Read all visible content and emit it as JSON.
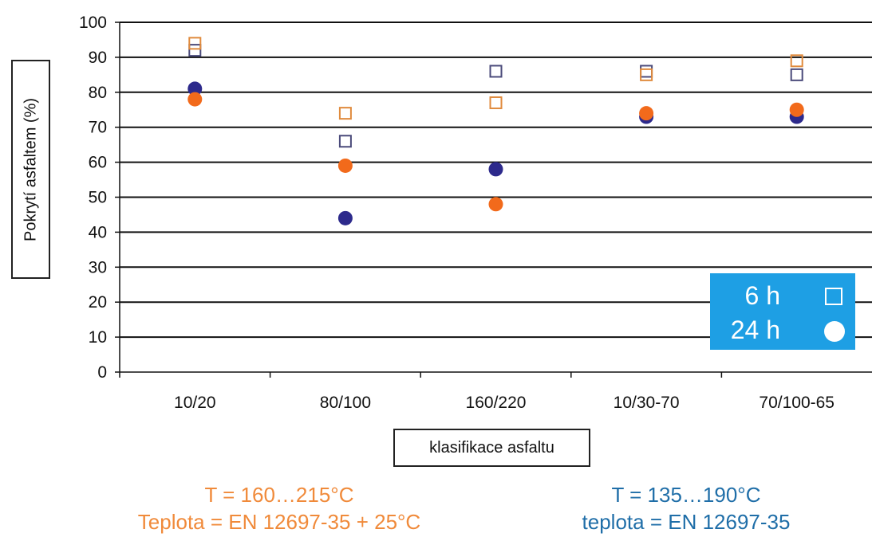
{
  "chart_data": {
    "type": "scatter",
    "categories": [
      "10/20",
      "80/100",
      "160/220",
      "10/30-70",
      "70/100-65"
    ],
    "ylim": [
      0,
      100
    ],
    "yticks": [
      0,
      10,
      20,
      30,
      40,
      50,
      60,
      70,
      80,
      90,
      100
    ],
    "grid": true,
    "ylabel": "Pokrytí asfaltem (%)",
    "xlabel": "klasifikace asfaltu",
    "series": [
      {
        "marker": "square-open",
        "color": "#4a4a7a",
        "values": [
          92,
          66,
          86,
          86,
          85
        ]
      },
      {
        "marker": "square-open",
        "color": "#e08a3c",
        "values": [
          94,
          74,
          77,
          85,
          89
        ]
      },
      {
        "marker": "circle-filled",
        "color": "#2d2a8c",
        "values": [
          81,
          44,
          58,
          73,
          73
        ]
      },
      {
        "marker": "circle-filled",
        "color": "#f26a1b",
        "values": [
          78,
          59,
          48,
          74,
          75
        ]
      }
    ],
    "legend": {
      "position": "bottom-right",
      "background": "#1e9fe4",
      "items": [
        {
          "label": "6 h",
          "symbol": "square-open"
        },
        {
          "label": "24 h",
          "symbol": "circle-filled"
        }
      ]
    }
  },
  "notes": {
    "left_line1": "T = 160…215°C",
    "left_line2": "Teplota = EN 12697-35 + 25°C",
    "left_color": "#f08a3a",
    "right_line1": "T = 135…190°C",
    "right_line2": "teplota = EN 12697-35",
    "right_color": "#1f6ea8"
  }
}
